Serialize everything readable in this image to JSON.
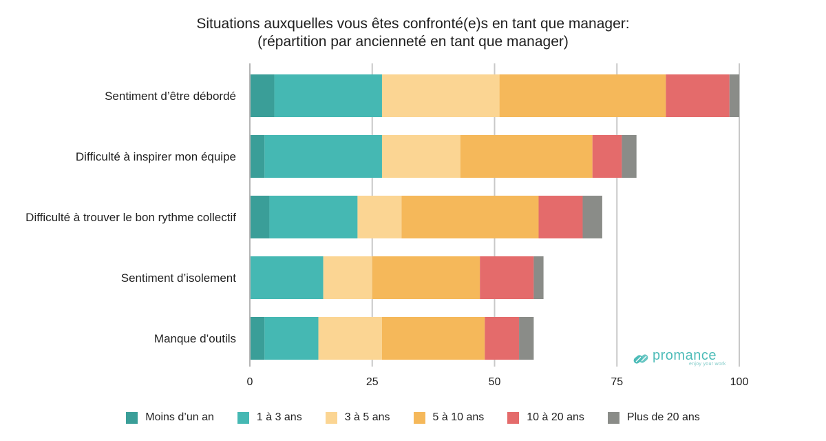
{
  "chart_data": {
    "type": "bar",
    "orientation": "horizontal",
    "stacked": true,
    "title_line1": "Situations auxquelles vous êtes confronté(e)s en tant que manager:",
    "title_line2": "(répartition par ancienneté en tant que manager)",
    "categories": [
      "Sentiment d’être débordé",
      "Difficulté à inspirer mon équipe",
      "Difficulté à trouver le bon rythme collectif",
      "Sentiment d’isolement",
      "Manque d’outils"
    ],
    "series": [
      {
        "name": "Moins d’un an",
        "color": "#3a9e98",
        "values": [
          5,
          3,
          4,
          0,
          3
        ]
      },
      {
        "name": "1 à 3 ans",
        "color": "#45b8b3",
        "values": [
          22,
          24,
          18,
          15,
          11
        ]
      },
      {
        "name": "3 à 5 ans",
        "color": "#fbd593",
        "values": [
          24,
          16,
          9,
          10,
          13
        ]
      },
      {
        "name": "5 à 10 ans",
        "color": "#f5b85a",
        "values": [
          34,
          27,
          28,
          22,
          21
        ]
      },
      {
        "name": "10 à 20 ans",
        "color": "#e46b6b",
        "values": [
          13,
          6,
          9,
          11,
          7
        ]
      },
      {
        "name": "Plus de 20 ans",
        "color": "#8a8c88",
        "values": [
          2,
          3,
          4,
          2,
          3
        ]
      }
    ],
    "xlim": [
      0,
      100
    ],
    "xticks": [
      "0",
      "25",
      "50",
      "75",
      "100"
    ],
    "xtick_values": [
      0,
      25,
      50,
      75,
      100
    ],
    "xlabel": "",
    "ylabel": "",
    "grid": "vertical",
    "legend_position": "bottom"
  },
  "logo": {
    "name": "promance",
    "tagline": "enjoy your work",
    "color": "#4dbcb8"
  }
}
